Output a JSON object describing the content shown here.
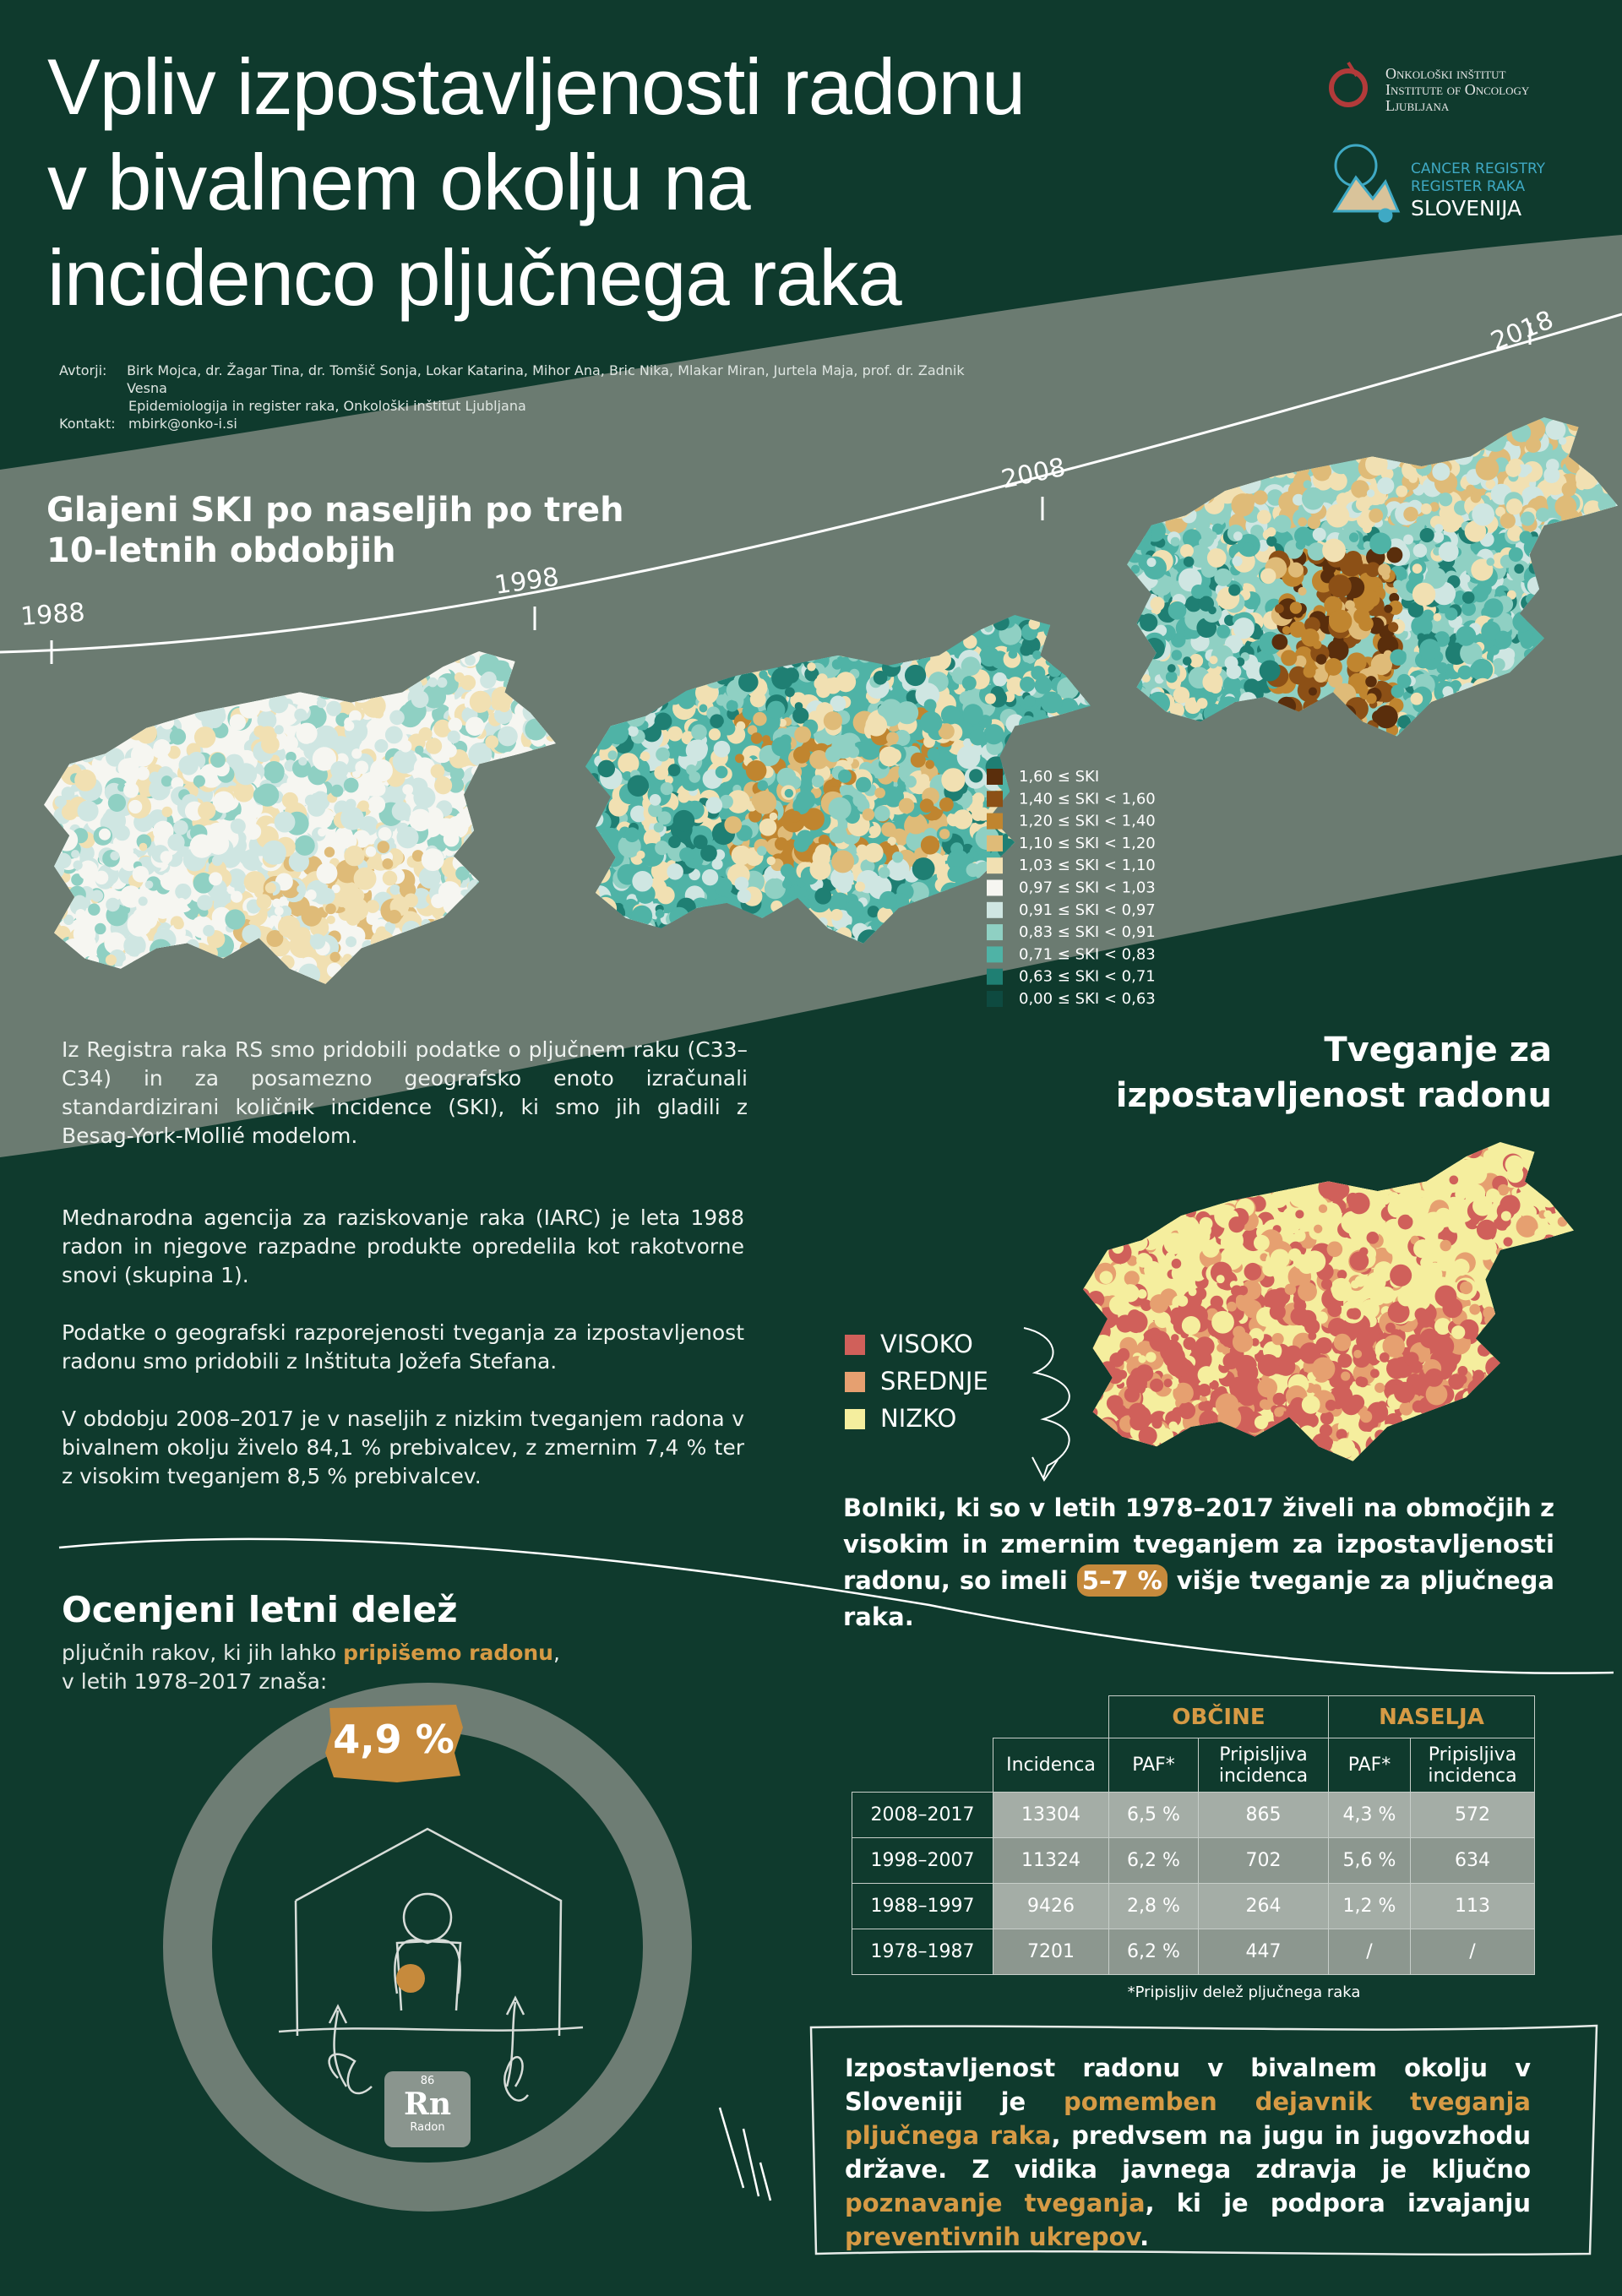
{
  "header": {
    "title_lines": [
      "Vpliv izpostavljenosti radonu",
      "v bivalnem okolju na",
      "incidenco pljučnega raka"
    ],
    "logo_oi": [
      "Onkološki inštitut",
      "Institute of Oncology",
      "Ljubljana"
    ],
    "logo_rr": [
      "CANCER REGISTRY",
      "REGISTER RAKA",
      "SLOVENIJA"
    ]
  },
  "authors": {
    "label": "Avtorji:",
    "names": "Birk Mojca, dr. Žagar Tina, dr. Tomšič Sonja, Lokar Katarina, Mihor Ana, Bric Nika, Mlakar Miran, Jurtela Maja, prof. dr. Zadnik Vesna",
    "affiliation": "Epidemiologija in register raka, Onkološki inštitut Ljubljana",
    "contact_label": "Kontakt:",
    "contact": "mbirk@onko-i.si"
  },
  "maps_section": {
    "title_lines": [
      "Glajeni SKI po naseljih po treh",
      "10-letnih obdobjih"
    ],
    "years": [
      "1988",
      "1998",
      "2008",
      "2018"
    ],
    "legend": [
      "1,60 ≤ SKI",
      "1,40 ≤ SKI < 1,60",
      "1,20 ≤ SKI < 1,40",
      "1,10 ≤ SKI < 1,20",
      "1,03 ≤ SKI < 1,10",
      "0,97 ≤ SKI < 1,03",
      "0,91 ≤ SKI < 0,97",
      "0,83 ≤ SKI < 0,91",
      "0,71 ≤ SKI < 0,83",
      "0,63 ≤ SKI < 0,71",
      "0,00 ≤ SKI < 0,63"
    ],
    "text": "Iz Registra raka RS smo pridobili podatke o pljučnem raku (C33–C34) in za posamezno geografsko enoto izračunali standardizirani količnik incidence (SKI), ki smo jih gladili z Besag-York-Mollié modelom."
  },
  "intro": {
    "paragraphs": [
      "Mednarodna agencija za raziskovanje raka (IARC) je leta 1988 radon in njegove razpadne produkte opredelila kot rakotvorne snovi (skupina 1).",
      "Podatke o geografski razporejenosti tveganja za izpostavljenost radonu smo pridobili z Inštituta Jožefa Stefana.",
      "V obdobju 2008–2017 je v naseljih z nizkim tveganjem radona v bivalnem okolju živelo 84,1 % prebivalcev, z zmernim 7,4 % ter z visokim tveganjem 8,5 % prebivalcev."
    ]
  },
  "risk": {
    "title_lines": [
      "Tveganje za",
      "izpostavljenost radonu"
    ],
    "legend": [
      "VISOKO",
      "SREDNJE",
      "NIZKO"
    ],
    "finding_parts": [
      "Bolniki, ki so v letih 1978–2017 živeli na območjih z visokim in zmernim tveganjem za izpostavljenosti radonu, so imeli ",
      "5–7 %",
      " višje tveganje za pljučnega raka."
    ]
  },
  "fraction": {
    "title": "Ocenjeni letni delež",
    "subtitle_parts": [
      "pljučnih rakov, ki jih lahko ",
      "pripišemo radonu",
      ","
    ],
    "subtitle_line2": "v letih 1978–2017 znaša:",
    "value": "4,9 %",
    "element": {
      "number": "86",
      "symbol": "Rn",
      "name": "Radon"
    }
  },
  "table": {
    "groups": [
      "OBČINE",
      "NASELJA"
    ],
    "headers": [
      "Incidenca",
      "PAF*",
      "Pripisljiva incidenca",
      "PAF*",
      "Pripisljiva incidenca"
    ],
    "rows": [
      [
        "2008–2017",
        "13304",
        "6,5 %",
        "865",
        "4,3 %",
        "572"
      ],
      [
        "1998–2007",
        "11324",
        "6,2 %",
        "702",
        "5,6 %",
        "634"
      ],
      [
        "1988–1997",
        "9426",
        "2,8 %",
        "264",
        "1,2 %",
        "113"
      ],
      [
        "1978–1987",
        "7201",
        "6,2 %",
        "447",
        "/",
        "/"
      ]
    ],
    "note": "*Pripisljiv delež pljučnega raka"
  },
  "conclusion": {
    "parts": [
      "Izpostavljenost radonu v bivalnem okolju v Sloveniji je ",
      "pomemben dejavnik tveganja pljučnega raka",
      ", predvsem na jugu in jugovzhodu države. Z vidika javnega zdravja je ključno ",
      "poznavanje tveganja",
      ", ki je podpora izvajanju ",
      "preventivnih ukrepov",
      "."
    ]
  }
}
